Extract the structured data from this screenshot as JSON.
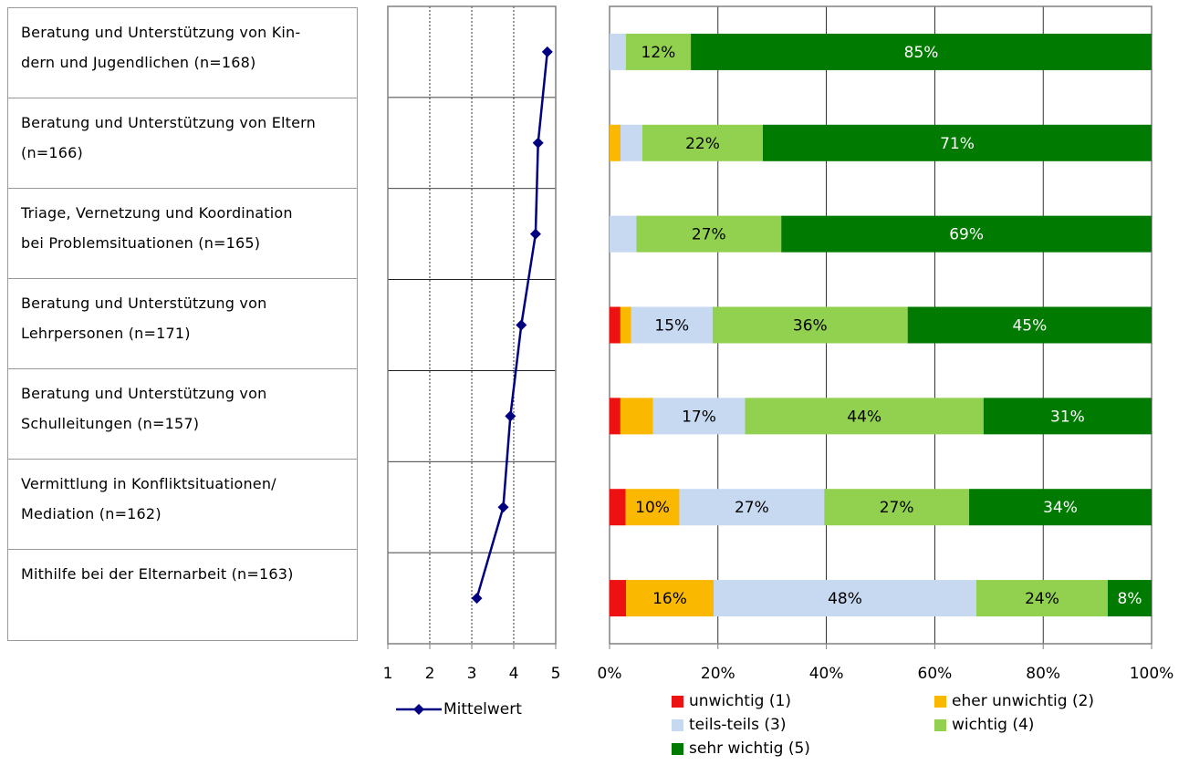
{
  "categories": [
    "Beratung und Unterstützung von Kin-\ndern und Jugendlichen (n=168)",
    "Beratung und Unterstützung von Eltern\n(n=166)",
    "Triage, Vernetzung und Koordination\nbei Problemsituationen (n=165)",
    "Beratung und Unterstützung von\nLehrpersonen (n=171)",
    "Beratung und Unterstützung von\nSchulleitungen (n=157)",
    "Vermittlung in Konfliktsituationen/\nMediation (n=162)",
    "Mithilfe bei der Elternarbeit (n=163)"
  ],
  "chart_data": [
    {
      "type": "line",
      "series": [
        {
          "name": "Mittelwert",
          "values": [
            4.8,
            4.58,
            4.52,
            4.18,
            3.92,
            3.75,
            3.12
          ],
          "color": "#000080"
        }
      ],
      "xlim": [
        1,
        5
      ],
      "xticks": [
        "1",
        "2",
        "3",
        "4",
        "5"
      ],
      "grid": true
    },
    {
      "type": "bar",
      "stacked": true,
      "orientation": "horizontal",
      "xlim": [
        0,
        100
      ],
      "xticks": [
        "0%",
        "20%",
        "40%",
        "60%",
        "80%",
        "100%"
      ],
      "grid": true,
      "legend_position": "bottom",
      "series": [
        {
          "name": "unwichtig (1)",
          "color": "#ee1111",
          "values": [
            0,
            0,
            0,
            2,
            2,
            3,
            3
          ]
        },
        {
          "name": "eher unwichtig (2)",
          "color": "#fbb800",
          "values": [
            0,
            2,
            0,
            2,
            6,
            10,
            16
          ]
        },
        {
          "name": "teils-teils (3)",
          "color": "#c6d9f1",
          "values": [
            3,
            4,
            5,
            15,
            17,
            27,
            48
          ]
        },
        {
          "name": "wichtig (4)",
          "color": "#92d050",
          "values": [
            12,
            22,
            27,
            36,
            44,
            27,
            24
          ]
        },
        {
          "name": "sehr wichtig (5)",
          "color": "#007a00",
          "values": [
            85,
            71,
            69,
            45,
            31,
            34,
            8
          ]
        }
      ],
      "labels": [
        [
          "",
          "",
          "",
          "12%",
          "85%"
        ],
        [
          "",
          "",
          "",
          "22%",
          "71%"
        ],
        [
          "",
          "",
          "",
          "27%",
          "69%"
        ],
        [
          "",
          "",
          "15%",
          "36%",
          "45%"
        ],
        [
          "",
          "",
          "17%",
          "44%",
          "31%"
        ],
        [
          "",
          "10%",
          "27%",
          "27%",
          "34%"
        ],
        [
          "",
          "16%",
          "48%",
          "24%",
          "8%"
        ]
      ]
    }
  ]
}
